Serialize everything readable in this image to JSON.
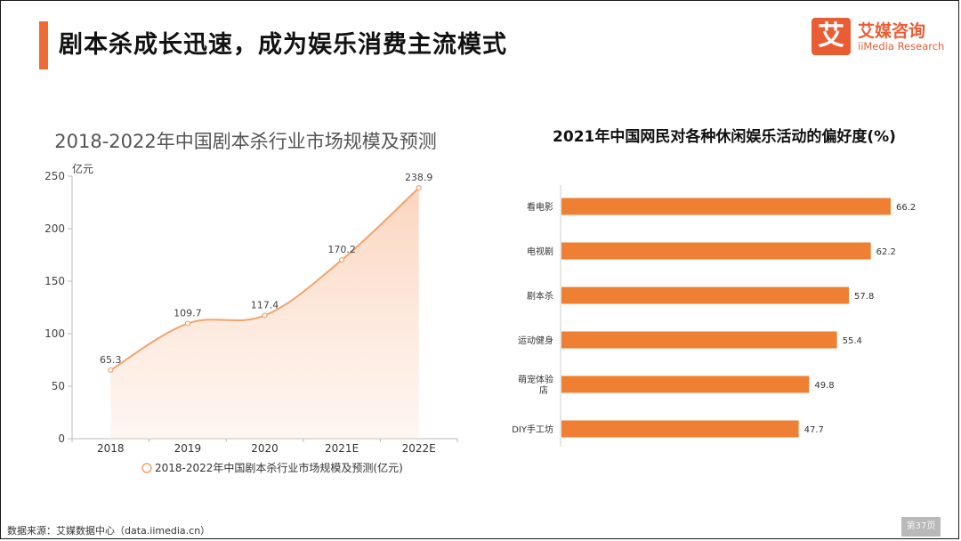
{
  "header": {
    "title": "剧本杀成长迅速，成为娱乐消费主流模式",
    "accent_color": "#f06a34"
  },
  "logo": {
    "mark": "艾",
    "name_cn": "艾媒咨询",
    "name_en": "iiMedia Research",
    "color": "#ea5d34"
  },
  "footer": {
    "source": "数据来源：艾媒数据中心（data.iimedia.cn）",
    "page_label": "第37页"
  },
  "chart_data": [
    {
      "type": "area",
      "title": "2018-2022年中国剧本杀行业市场规模及预测",
      "ylabel": "亿元",
      "xlabel": "",
      "categories": [
        "2018",
        "2019",
        "2020",
        "2021E",
        "2022E"
      ],
      "series": [
        {
          "name": "2018-2022年中国剧本杀行业市场规模及预测(亿元)",
          "values": [
            65.3,
            109.7,
            117.4,
            170.2,
            238.9
          ]
        }
      ],
      "data_labels": [
        "65.3",
        "109.7",
        "117.4",
        "170.2",
        "238.9"
      ],
      "yticks": [
        "0",
        "50",
        "100",
        "150",
        "200",
        "250"
      ],
      "ylim": [
        0,
        250
      ],
      "grid": false,
      "legend": "bottom",
      "color": "#f2a36e"
    },
    {
      "type": "bar",
      "orientation": "horizontal",
      "title": "2021年中国网民对各种休闲娱乐活动的偏好度(%)",
      "categories": [
        "看电影",
        "电视剧",
        "剧本杀",
        "运动健身",
        "萌宠体验店",
        "DIY手工坊"
      ],
      "values": [
        66.2,
        62.2,
        57.8,
        55.4,
        49.8,
        47.7
      ],
      "data_labels": [
        "66.2",
        "62.2",
        "57.8",
        "55.4",
        "49.8",
        "47.7"
      ],
      "color": "#ef7f32"
    }
  ]
}
